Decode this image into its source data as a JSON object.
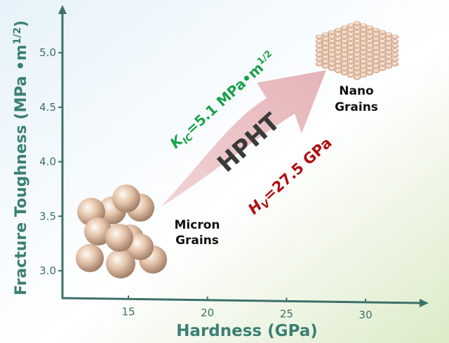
{
  "x_axis": {
    "label": "Hardness (GPa)",
    "ticks": [
      "15",
      "20",
      "25",
      "30"
    ]
  },
  "y_axis": {
    "label_main": "Fracture Toughness (MPa •m",
    "label_sup": "1/2",
    "label_close": ")",
    "ticks": [
      "3.0",
      "3.5",
      "4.0",
      "4.5",
      "5.0"
    ]
  },
  "process": {
    "label": "HPHT",
    "color": "#e8b8bc"
  },
  "toughness": {
    "symbol": "K",
    "subscript": "IC",
    "value": "=5.1 MPa•m",
    "sup": "1/2",
    "color": "#1aa14a"
  },
  "hardness": {
    "symbol": "H",
    "subscript": "V",
    "value": "=27.5 GPa",
    "color": "#b00d12"
  },
  "micron": {
    "line1": "Micron",
    "line2": "Grains"
  },
  "nano": {
    "line1": "Nano",
    "line2": "Grains"
  },
  "colors": {
    "axis": "#3d7069",
    "grain": "#e2c2a8"
  }
}
